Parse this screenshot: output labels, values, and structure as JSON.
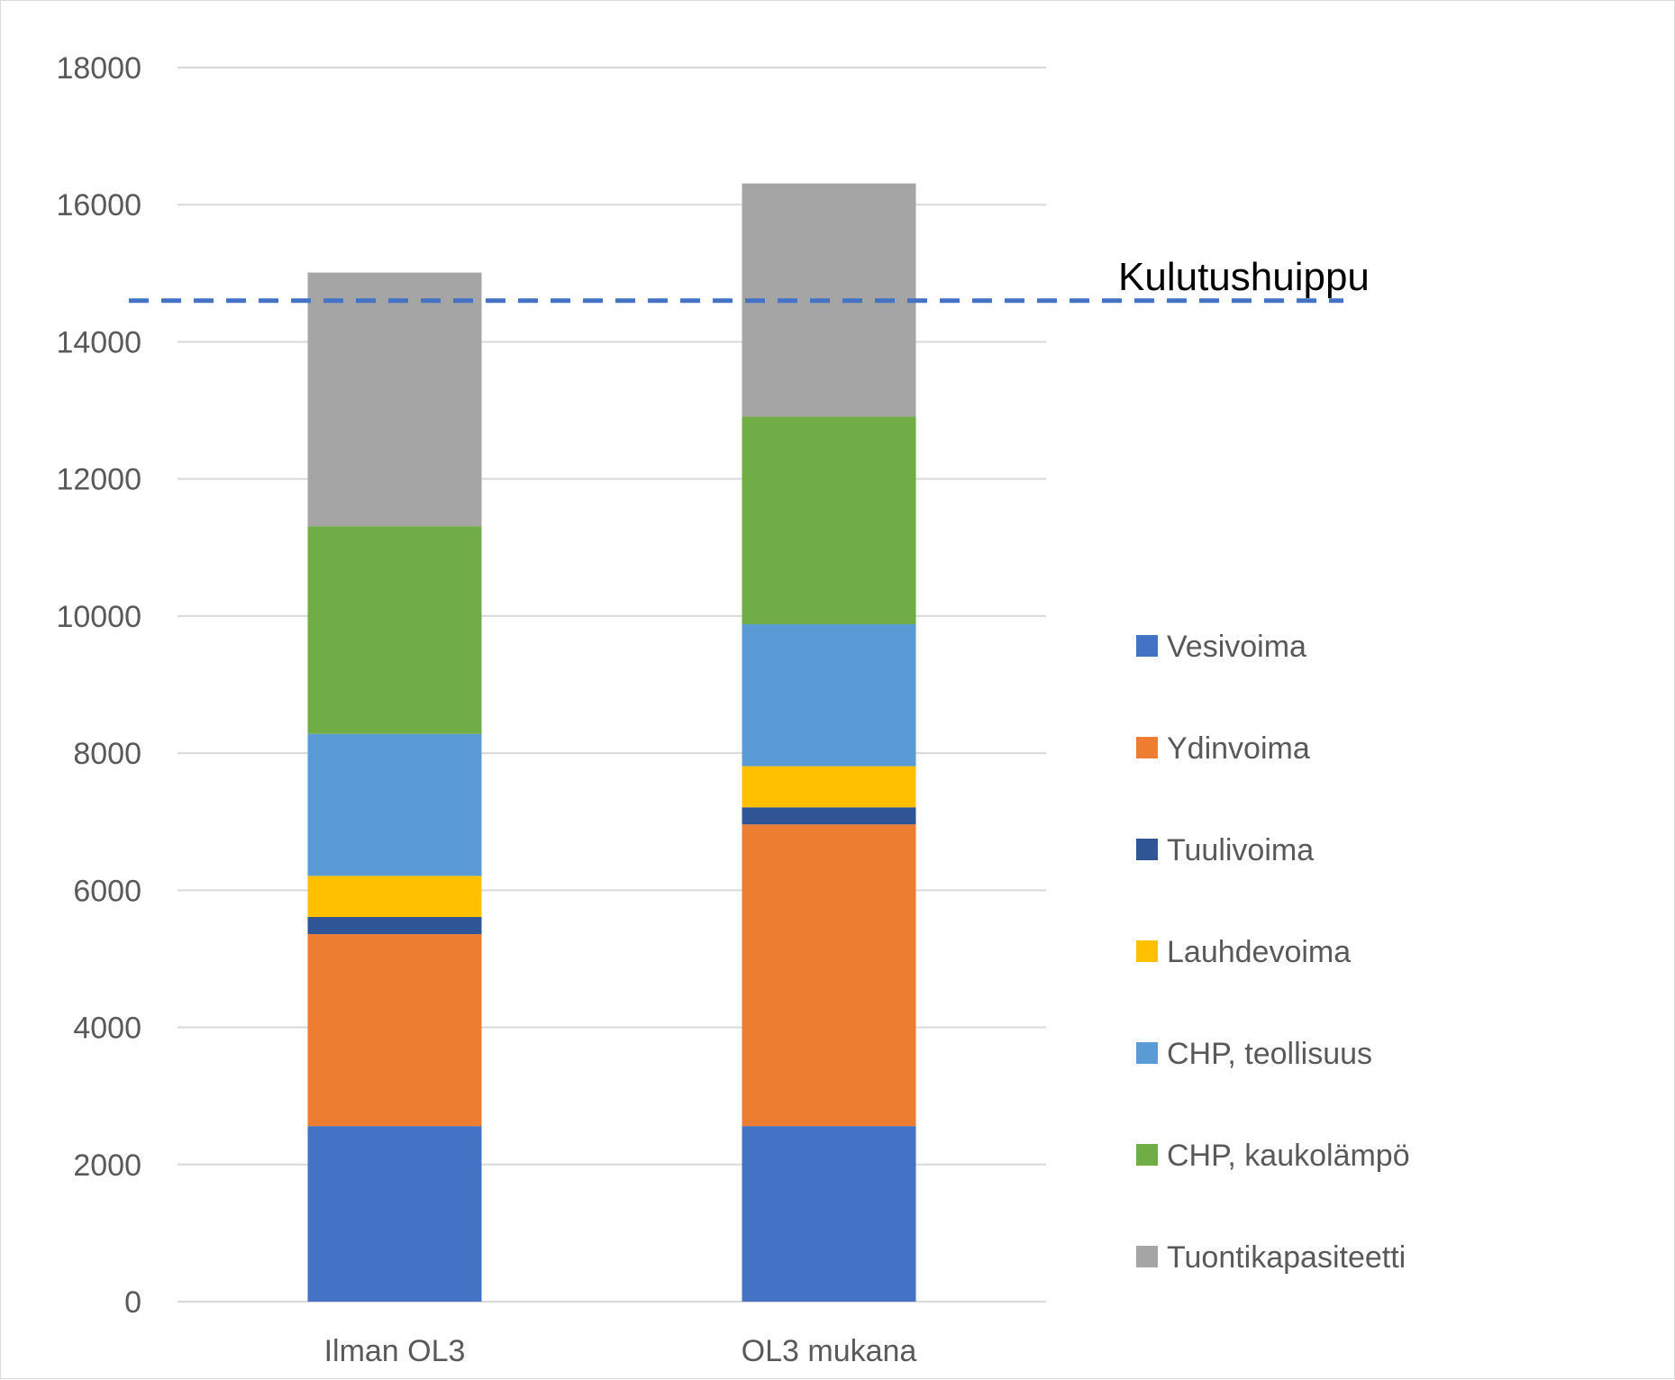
{
  "chart_data": {
    "type": "bar",
    "stacked": true,
    "categories": [
      "Ilman OL3",
      "OL3 mukana"
    ],
    "ylim": [
      0,
      18000
    ],
    "yticks": [
      0,
      2000,
      4000,
      6000,
      8000,
      10000,
      12000,
      14000,
      16000,
      18000
    ],
    "grid": true,
    "legend_position": "right",
    "series": [
      {
        "name": "Vesivoima",
        "color": "#4472C4",
        "values": [
          2560,
          2560
        ]
      },
      {
        "name": "Ydinvoima",
        "color": "#ED7D31",
        "values": [
          2800,
          4400
        ]
      },
      {
        "name": "Tuulivoima",
        "color": "#2F5597",
        "values": [
          250,
          250
        ]
      },
      {
        "name": "Lauhdevoima",
        "color": "#FFC000",
        "values": [
          600,
          600
        ]
      },
      {
        "name": "CHP, teollisuus",
        "color": "#5B9BD5",
        "values": [
          2070,
          2070
        ]
      },
      {
        "name": "CHP, kaukolämpö",
        "color": "#70AD47",
        "values": [
          3030,
          3030
        ]
      },
      {
        "name": "Tuontikapasiteetti",
        "color": "#A5A5A5",
        "values": [
          3700,
          3400
        ]
      }
    ],
    "reference_line": {
      "label": "Kulutushuippu",
      "value": 14600,
      "color": "#4472C4",
      "style": "dashed"
    }
  }
}
